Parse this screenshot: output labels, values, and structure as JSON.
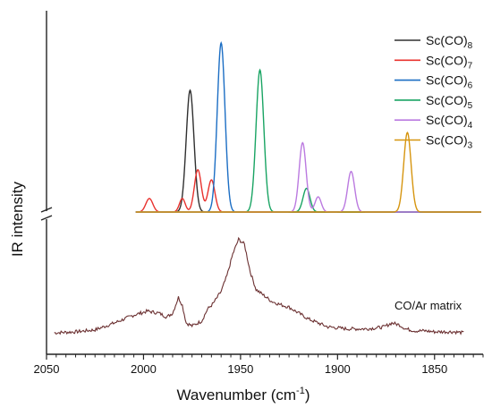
{
  "chart_data": {
    "type": "line",
    "xlabel_main": "Wavenumber (cm",
    "xlabel_sup": "-1",
    "xlabel_close": ")",
    "ylabel": "IR intensity",
    "xlim": [
      2050,
      1825
    ],
    "x_reversed": true,
    "x_ticks": [
      2050,
      2000,
      1950,
      1900,
      1850
    ],
    "x_tick_labels": [
      "2050",
      "2000",
      "1950",
      "1900",
      "1850"
    ],
    "y_axis_break": true,
    "annotation": "CO/Ar matrix",
    "legend_position": "top-right",
    "series": [
      {
        "name": "Sc(CO)8",
        "base": "Sc(CO)",
        "sub": "8",
        "color": "#303030",
        "peaks": [
          {
            "x": 1976,
            "height": 0.72,
            "width": 2.0
          }
        ]
      },
      {
        "name": "Sc(CO)7",
        "base": "Sc(CO)",
        "sub": "7",
        "color": "#e8322e",
        "peaks": [
          {
            "x": 1997,
            "height": 0.08,
            "width": 1.8
          },
          {
            "x": 1980,
            "height": 0.08,
            "width": 1.5
          },
          {
            "x": 1972,
            "height": 0.25,
            "width": 1.8
          },
          {
            "x": 1965,
            "height": 0.19,
            "width": 1.8
          }
        ]
      },
      {
        "name": "Sc(CO)6",
        "base": "Sc(CO)",
        "sub": "6",
        "color": "#1c6ec4",
        "peaks": [
          {
            "x": 1960,
            "height": 1.0,
            "width": 2.0
          }
        ]
      },
      {
        "name": "Sc(CO)5",
        "base": "Sc(CO)",
        "sub": "5",
        "color": "#19a463",
        "peaks": [
          {
            "x": 1940,
            "height": 0.84,
            "width": 2.0
          },
          {
            "x": 1916,
            "height": 0.14,
            "width": 1.8
          }
        ]
      },
      {
        "name": "Sc(CO)4",
        "base": "Sc(CO)",
        "sub": "4",
        "color": "#bb7ae0",
        "peaks": [
          {
            "x": 1918,
            "height": 0.41,
            "width": 1.8
          },
          {
            "x": 1910,
            "height": 0.09,
            "width": 1.6
          },
          {
            "x": 1893,
            "height": 0.24,
            "width": 1.8
          }
        ]
      },
      {
        "name": "Sc(CO)3",
        "base": "Sc(CO)",
        "sub": "3",
        "color": "#d6950f",
        "peaks": [
          {
            "x": 1864,
            "height": 0.47,
            "width": 1.9
          }
        ]
      }
    ],
    "experimental": {
      "name": "CO/Ar matrix",
      "color": "#6b3031",
      "x": [
        2046,
        2035,
        2025,
        2015,
        2005,
        1998,
        1992,
        1988,
        1985,
        1982,
        1980,
        1978,
        1975,
        1970,
        1967,
        1964,
        1960,
        1957,
        1954,
        1951,
        1948,
        1945,
        1942,
        1938,
        1934,
        1930,
        1925,
        1920,
        1915,
        1910,
        1905,
        1900,
        1895,
        1890,
        1885,
        1880,
        1876,
        1872,
        1868,
        1865,
        1860,
        1855,
        1850,
        1845,
        1840,
        1835
      ],
      "y": [
        0.0,
        0.01,
        0.03,
        0.1,
        0.18,
        0.22,
        0.2,
        0.16,
        0.2,
        0.36,
        0.28,
        0.1,
        0.07,
        0.12,
        0.24,
        0.3,
        0.42,
        0.58,
        0.8,
        0.95,
        0.9,
        0.62,
        0.44,
        0.38,
        0.32,
        0.29,
        0.26,
        0.2,
        0.14,
        0.1,
        0.06,
        0.05,
        0.04,
        0.04,
        0.04,
        0.05,
        0.06,
        0.1,
        0.08,
        0.04,
        0.02,
        0.02,
        0.01,
        0.01,
        0.01,
        0.0
      ]
    }
  }
}
